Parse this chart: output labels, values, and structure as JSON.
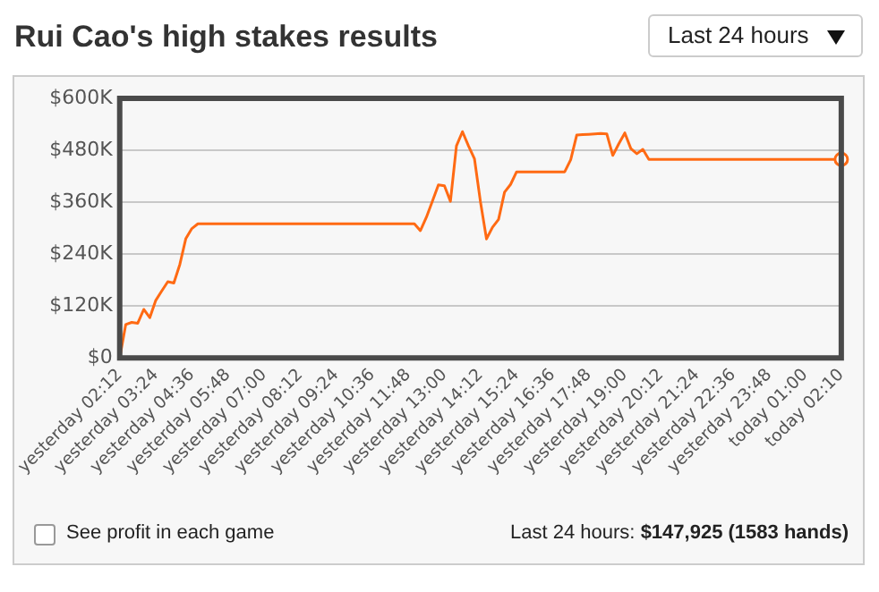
{
  "chart_data": {
    "type": "line",
    "title": "Rui Cao's high stakes results",
    "annotations": [
      "Last 24 hours",
      "See profit in each game",
      "Last 24 hours: $147,925 (1583 hands)"
    ],
    "categories": [
      "yesterday 02:12",
      null,
      null,
      null,
      null,
      null,
      "yesterday 03:24",
      null,
      null,
      null,
      null,
      null,
      "yesterday 04:36",
      null,
      null,
      null,
      null,
      null,
      "yesterday 05:48",
      null,
      null,
      null,
      null,
      null,
      "yesterday 07:00",
      null,
      null,
      null,
      null,
      null,
      "yesterday 08:12",
      null,
      null,
      null,
      null,
      null,
      "yesterday 09:24",
      null,
      null,
      null,
      null,
      null,
      "yesterday 10:36",
      null,
      null,
      null,
      null,
      null,
      "yesterday 11:48",
      null,
      null,
      null,
      null,
      null,
      "yesterday 13:00",
      null,
      null,
      null,
      null,
      null,
      "yesterday 14:12",
      null,
      null,
      null,
      null,
      null,
      "yesterday 15:24",
      null,
      null,
      null,
      null,
      null,
      "yesterday 16:36",
      null,
      null,
      null,
      null,
      null,
      "yesterday 17:48",
      null,
      null,
      null,
      null,
      null,
      "yesterday 19:00",
      null,
      null,
      null,
      null,
      null,
      "yesterday 20:12",
      null,
      null,
      null,
      null,
      null,
      "yesterday 21:24",
      null,
      null,
      null,
      null,
      null,
      "yesterday 22:36",
      null,
      null,
      null,
      null,
      null,
      "yesterday 23:48",
      null,
      null,
      null,
      null,
      null,
      "today 01:00",
      null,
      null,
      null,
      null,
      null,
      "today 02:10"
    ],
    "series": [
      {
        "color": "#ff6a13",
        "values": [
          0,
          77000,
          82000,
          80000,
          112000,
          93000,
          133000,
          155000,
          176000,
          173000,
          216000,
          276000,
          299000,
          310000,
          310000,
          310000,
          310000,
          310000,
          310000,
          310000,
          310000,
          310000,
          310000,
          310000,
          310000,
          310000,
          310000,
          310000,
          310000,
          310000,
          310000,
          310000,
          310000,
          310000,
          310000,
          310000,
          310000,
          310000,
          310000,
          310000,
          310000,
          310000,
          310000,
          310000,
          310000,
          310000,
          310000,
          310000,
          310000,
          310000,
          294000,
          325000,
          362000,
          400000,
          398000,
          362000,
          490000,
          523000,
          490000,
          460000,
          360000,
          275000,
          302000,
          320000,
          383000,
          401000,
          430000,
          430000,
          430000,
          430000,
          430000,
          430000,
          430000,
          430000,
          430000,
          458000,
          515000,
          516000,
          517000,
          518000,
          519000,
          518000,
          468000,
          495000,
          520000,
          484000,
          472000,
          482000,
          459000,
          459000,
          459000,
          459000,
          459000,
          459000,
          459000,
          459000,
          459000,
          459000,
          459000,
          459000,
          459000,
          459000,
          459000,
          459000,
          459000,
          459000,
          459000,
          459000,
          459000,
          459000,
          459000,
          459000,
          459000,
          459000,
          459000,
          459000,
          459000,
          459000,
          459000,
          459000,
          459000
        ]
      }
    ],
    "ylim": [
      0,
      600000
    ],
    "yticks": [
      {
        "value": 0,
        "label": "$0"
      },
      {
        "value": 120000,
        "label": "$120K"
      },
      {
        "value": 240000,
        "label": "$240K"
      },
      {
        "value": 360000,
        "label": "$360K"
      },
      {
        "value": 480000,
        "label": "$480K"
      },
      {
        "value": 600000,
        "label": "$600K"
      }
    ],
    "grid": "y",
    "legend": false
  }
}
